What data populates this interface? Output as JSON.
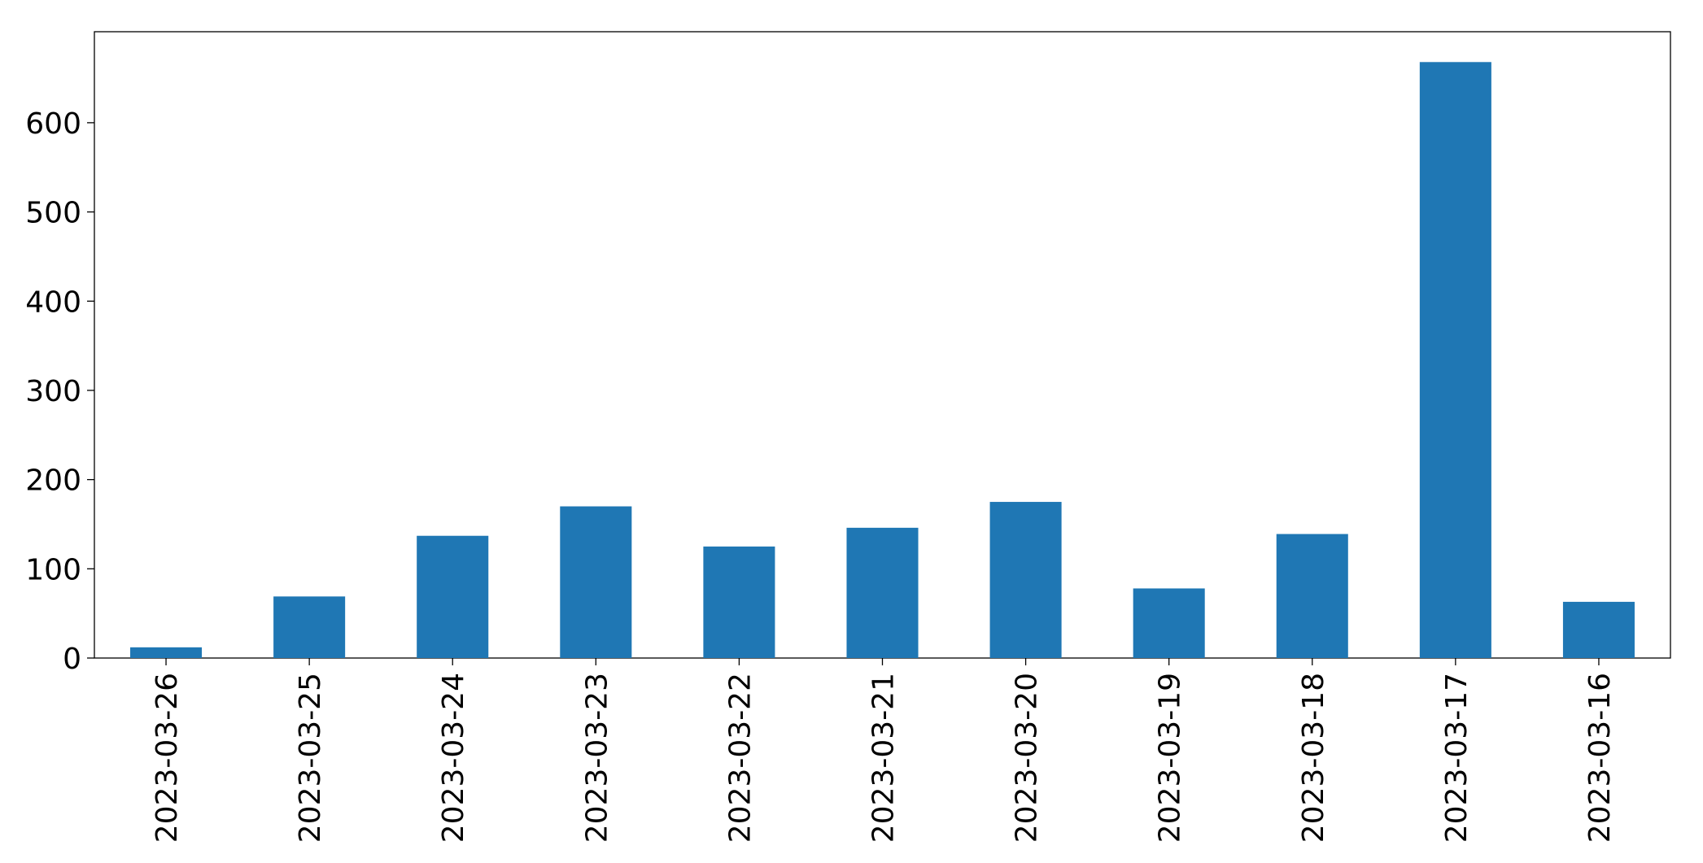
{
  "chart_data": {
    "type": "bar",
    "categories": [
      "2023-03-26",
      "2023-03-25",
      "2023-03-24",
      "2023-03-23",
      "2023-03-22",
      "2023-03-21",
      "2023-03-20",
      "2023-03-19",
      "2023-03-18",
      "2023-03-17",
      "2023-03-16"
    ],
    "values": [
      12,
      69,
      137,
      170,
      125,
      146,
      175,
      78,
      139,
      668,
      63
    ],
    "color": "#1f77b4",
    "ylim": [
      0,
      702
    ],
    "yticks": [
      0,
      100,
      200,
      300,
      400,
      500,
      600
    ],
    "grid": false
  }
}
